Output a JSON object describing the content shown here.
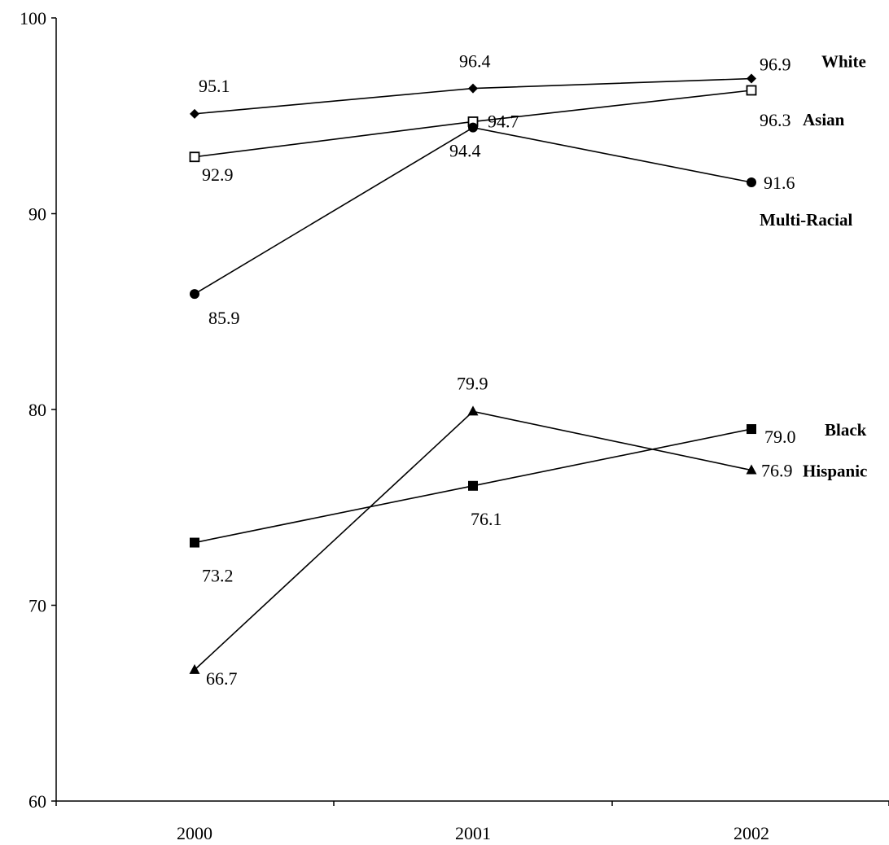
{
  "chart_data": {
    "type": "line",
    "title": "",
    "xlabel": "",
    "ylabel": "",
    "categories": [
      "2000",
      "2001",
      "2002"
    ],
    "ylim": [
      60,
      100
    ],
    "yticks": [
      "60",
      "70",
      "80",
      "90",
      "100"
    ],
    "grid": false,
    "series": [
      {
        "name": "White",
        "marker": "diamond",
        "values": [
          95.1,
          96.4,
          96.9
        ],
        "labels": [
          "95.1",
          "96.4",
          "96.9"
        ]
      },
      {
        "name": "Asian",
        "marker": "open-square",
        "values": [
          92.9,
          94.7,
          96.3
        ],
        "labels": [
          "92.9",
          "94.7",
          "96.3"
        ]
      },
      {
        "name": "Multi-Racial",
        "marker": "circle",
        "values": [
          85.9,
          94.4,
          91.6
        ],
        "labels": [
          "85.9",
          "94.4",
          "91.6"
        ]
      },
      {
        "name": "Black",
        "marker": "square",
        "values": [
          73.2,
          76.1,
          79.0
        ],
        "labels": [
          "73.2",
          "76.1",
          "79.0"
        ]
      },
      {
        "name": "Hispanic",
        "marker": "triangle",
        "values": [
          66.7,
          79.9,
          76.9
        ],
        "labels": [
          "66.7",
          "79.9",
          "76.9"
        ]
      }
    ]
  }
}
